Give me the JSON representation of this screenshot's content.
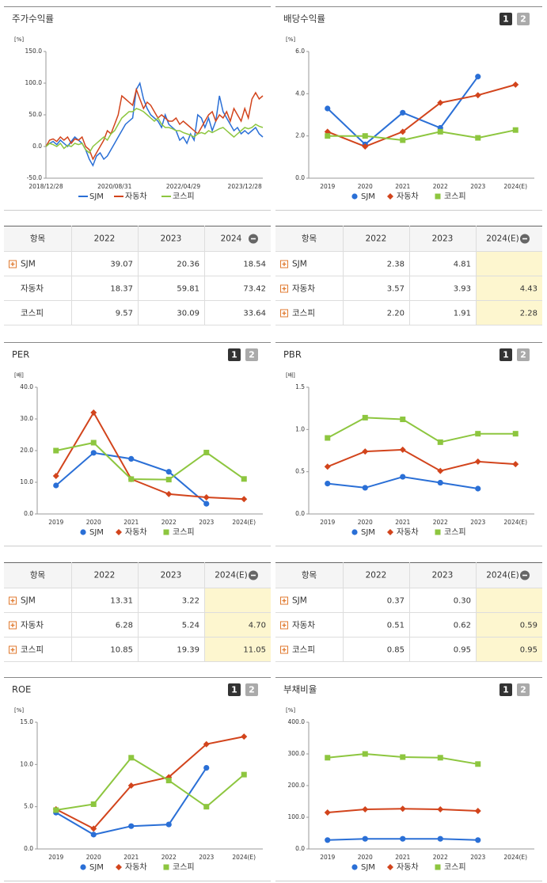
{
  "tab_labels": [
    "1",
    "2"
  ],
  "chart_data": [
    {
      "type": "line",
      "title": "주가수익률",
      "unit": "[%]",
      "tabs": false,
      "markers": false,
      "categories": [
        "2018/12/28",
        null,
        null,
        null,
        null,
        null,
        null,
        null,
        null,
        null,
        null,
        null,
        null,
        null,
        null,
        null,
        null,
        null,
        null,
        "2020/08/31",
        null,
        null,
        null,
        null,
        null,
        null,
        null,
        null,
        null,
        null,
        null,
        null,
        null,
        null,
        null,
        null,
        null,
        null,
        "2022/04/29",
        null,
        null,
        null,
        null,
        null,
        null,
        null,
        null,
        null,
        null,
        null,
        null,
        null,
        null,
        null,
        null,
        "2023/12/28",
        null,
        null,
        null,
        null,
        null
      ],
      "ylim": [
        -50,
        150
      ],
      "yticks": [
        {
          "value": 150,
          "label": "150.0"
        },
        {
          "value": 100,
          "label": "100.0"
        },
        {
          "value": 50,
          "label": "50.0"
        },
        {
          "value": 0,
          "label": "0.0"
        },
        {
          "value": -50,
          "label": "-50.0"
        }
      ],
      "series": [
        {
          "name": "SJM",
          "color": "#2a6fd6",
          "marker": "circle",
          "values": [
            0,
            5,
            8,
            3,
            10,
            5,
            0,
            8,
            15,
            10,
            5,
            -5,
            -20,
            -30,
            -15,
            -10,
            -20,
            -15,
            -5,
            5,
            15,
            25,
            35,
            40,
            45,
            90,
            100,
            75,
            60,
            50,
            45,
            40,
            30,
            50,
            35,
            30,
            25,
            10,
            15,
            5,
            20,
            10,
            50,
            45,
            30,
            45,
            25,
            40,
            80,
            55,
            45,
            35,
            25,
            30,
            20,
            25,
            20,
            25,
            30,
            20,
            15
          ]
        },
        {
          "name": "자동차",
          "color": "#d2441c",
          "marker": "diamond",
          "values": [
            0,
            10,
            12,
            8,
            15,
            10,
            15,
            5,
            12,
            10,
            15,
            0,
            -5,
            -20,
            -10,
            0,
            10,
            25,
            20,
            35,
            50,
            80,
            75,
            70,
            65,
            90,
            75,
            60,
            70,
            65,
            55,
            45,
            50,
            45,
            40,
            40,
            45,
            35,
            40,
            35,
            30,
            25,
            20,
            30,
            40,
            50,
            55,
            40,
            50,
            45,
            55,
            40,
            60,
            50,
            40,
            60,
            45,
            75,
            85,
            75,
            80
          ]
        },
        {
          "name": "코스피",
          "color": "#8dc63f",
          "marker": "square",
          "values": [
            0,
            5,
            3,
            0,
            5,
            -3,
            2,
            0,
            5,
            3,
            5,
            -5,
            -10,
            0,
            5,
            10,
            15,
            10,
            20,
            25,
            35,
            45,
            50,
            55,
            55,
            60,
            58,
            55,
            50,
            45,
            40,
            45,
            35,
            30,
            30,
            28,
            25,
            25,
            22,
            20,
            18,
            15,
            20,
            22,
            20,
            25,
            22,
            25,
            28,
            30,
            25,
            20,
            15,
            20,
            25,
            30,
            28,
            30,
            35,
            32,
            30
          ]
        }
      ]
    },
    {
      "type": "line",
      "title": "배당수익률",
      "unit": "[%]",
      "tabs": true,
      "markers": true,
      "categories": [
        "2019",
        "2020",
        "2021",
        "2022",
        "2023",
        "2024(E)"
      ],
      "ylim": [
        0,
        6
      ],
      "yticks": [
        {
          "value": 0,
          "label": "0.0"
        },
        {
          "value": 2,
          "label": "2.0"
        },
        {
          "value": 4,
          "label": "4.0"
        },
        {
          "value": 6,
          "label": "6.0"
        }
      ],
      "series": [
        {
          "name": "SJM",
          "color": "#2a6fd6",
          "marker": "circle",
          "values": [
            3.3,
            1.6,
            3.1,
            2.38,
            4.81,
            null
          ]
        },
        {
          "name": "자동차",
          "color": "#d2441c",
          "marker": "diamond",
          "values": [
            2.2,
            1.5,
            2.2,
            3.57,
            3.93,
            4.43
          ]
        },
        {
          "name": "코스피",
          "color": "#8dc63f",
          "marker": "square",
          "values": [
            2.0,
            2.0,
            1.8,
            2.2,
            1.91,
            2.28
          ]
        }
      ]
    },
    {
      "type": "line",
      "title": "PER",
      "unit": "[배]",
      "tabs": true,
      "markers": true,
      "categories": [
        "2019",
        "2020",
        "2021",
        "2022",
        "2023",
        "2024(E)"
      ],
      "ylim": [
        0,
        40
      ],
      "yticks": [
        {
          "value": 0,
          "label": "0.0"
        },
        {
          "value": 10,
          "label": "10.0"
        },
        {
          "value": 20,
          "label": "20.0"
        },
        {
          "value": 30,
          "label": "30.0"
        },
        {
          "value": 40,
          "label": "40.0"
        }
      ],
      "series": [
        {
          "name": "SJM",
          "color": "#2a6fd6",
          "marker": "circle",
          "values": [
            9,
            19.3,
            17.4,
            13.31,
            3.22,
            null
          ]
        },
        {
          "name": "자동차",
          "color": "#d2441c",
          "marker": "diamond",
          "values": [
            12,
            32,
            11,
            6.28,
            5.24,
            4.7
          ]
        },
        {
          "name": "코스피",
          "color": "#8dc63f",
          "marker": "square",
          "values": [
            20,
            22.5,
            11,
            10.85,
            19.39,
            11.05
          ]
        }
      ]
    },
    {
      "type": "line",
      "title": "PBR",
      "unit": "[배]",
      "tabs": true,
      "markers": true,
      "categories": [
        "2019",
        "2020",
        "2021",
        "2022",
        "2023",
        "2024(E)"
      ],
      "ylim": [
        0,
        1.5
      ],
      "yticks": [
        {
          "value": 0,
          "label": "0.0"
        },
        {
          "value": 0.5,
          "label": "0.5"
        },
        {
          "value": 1,
          "label": "1.0"
        },
        {
          "value": 1.5,
          "label": "1.5"
        }
      ],
      "series": [
        {
          "name": "SJM",
          "color": "#2a6fd6",
          "marker": "circle",
          "values": [
            0.36,
            0.31,
            0.44,
            0.37,
            0.3,
            null
          ]
        },
        {
          "name": "자동차",
          "color": "#d2441c",
          "marker": "diamond",
          "values": [
            0.56,
            0.74,
            0.76,
            0.51,
            0.62,
            0.59
          ]
        },
        {
          "name": "코스피",
          "color": "#8dc63f",
          "marker": "square",
          "values": [
            0.9,
            1.14,
            1.12,
            0.85,
            0.95,
            0.95
          ]
        }
      ]
    },
    {
      "type": "line",
      "title": "ROE",
      "unit": "[%]",
      "tabs": true,
      "markers": true,
      "categories": [
        "2019",
        "2020",
        "2021",
        "2022",
        "2023",
        "2024(E)"
      ],
      "ylim": [
        0,
        15
      ],
      "yticks": [
        {
          "value": 0,
          "label": "0.0"
        },
        {
          "value": 5,
          "label": "5.0"
        },
        {
          "value": 10,
          "label": "10.0"
        },
        {
          "value": 15,
          "label": "15.0"
        }
      ],
      "series": [
        {
          "name": "SJM",
          "color": "#2a6fd6",
          "marker": "circle",
          "values": [
            4.3,
            1.7,
            2.7,
            2.9,
            9.6,
            null
          ]
        },
        {
          "name": "자동차",
          "color": "#d2441c",
          "marker": "diamond",
          "values": [
            4.7,
            2.4,
            7.5,
            8.5,
            12.4,
            13.3
          ]
        },
        {
          "name": "코스피",
          "color": "#8dc63f",
          "marker": "square",
          "values": [
            4.6,
            5.3,
            10.8,
            8.1,
            5.0,
            8.8
          ]
        }
      ]
    },
    {
      "type": "line",
      "title": "부채비율",
      "unit": "[%]",
      "tabs": true,
      "markers": true,
      "categories": [
        "2019",
        "2020",
        "2021",
        "2022",
        "2023",
        "2024(E)"
      ],
      "ylim": [
        0,
        400
      ],
      "yticks": [
        {
          "value": 0,
          "label": "0.0"
        },
        {
          "value": 100,
          "label": "100.0"
        },
        {
          "value": 200,
          "label": "200.0"
        },
        {
          "value": 300,
          "label": "300.0"
        },
        {
          "value": 400,
          "label": "400.0"
        }
      ],
      "series": [
        {
          "name": "SJM",
          "color": "#2a6fd6",
          "marker": "circle",
          "values": [
            28,
            32,
            32,
            32,
            28,
            null
          ]
        },
        {
          "name": "자동차",
          "color": "#d2441c",
          "marker": "diamond",
          "values": [
            115,
            125,
            127,
            125,
            120,
            null
          ]
        },
        {
          "name": "코스피",
          "color": "#8dc63f",
          "marker": "square",
          "values": [
            288,
            300,
            290,
            288,
            268,
            null
          ]
        }
      ]
    }
  ],
  "tables": [
    {
      "header": [
        "항목",
        "2022",
        "2023",
        "2024"
      ],
      "highlight_last": false,
      "rows": [
        {
          "label": "SJM",
          "expandable": true,
          "cells": [
            "39.07",
            "20.36",
            "18.54"
          ]
        },
        {
          "label": "자동차",
          "expandable": false,
          "cells": [
            "18.37",
            "59.81",
            "73.42"
          ]
        },
        {
          "label": "코스피",
          "expandable": false,
          "cells": [
            "9.57",
            "30.09",
            "33.64"
          ]
        }
      ]
    },
    {
      "header": [
        "항목",
        "2022",
        "2023",
        "2024(E)"
      ],
      "highlight_last": true,
      "rows": [
        {
          "label": "SJM",
          "expandable": true,
          "cells": [
            "2.38",
            "4.81",
            null
          ]
        },
        {
          "label": "자동차",
          "expandable": true,
          "cells": [
            "3.57",
            "3.93",
            "4.43"
          ]
        },
        {
          "label": "코스피",
          "expandable": true,
          "cells": [
            "2.20",
            "1.91",
            "2.28"
          ]
        }
      ]
    },
    {
      "header": [
        "항목",
        "2022",
        "2023",
        "2024(E)"
      ],
      "highlight_last": true,
      "rows": [
        {
          "label": "SJM",
          "expandable": true,
          "cells": [
            "13.31",
            "3.22",
            null
          ]
        },
        {
          "label": "자동차",
          "expandable": true,
          "cells": [
            "6.28",
            "5.24",
            "4.70"
          ]
        },
        {
          "label": "코스피",
          "expandable": true,
          "cells": [
            "10.85",
            "19.39",
            "11.05"
          ]
        }
      ]
    },
    {
      "header": [
        "항목",
        "2022",
        "2023",
        "2024(E)"
      ],
      "highlight_last": true,
      "rows": [
        {
          "label": "SJM",
          "expandable": true,
          "cells": [
            "0.37",
            "0.30",
            null
          ]
        },
        {
          "label": "자동차",
          "expandable": true,
          "cells": [
            "0.51",
            "0.62",
            "0.59"
          ]
        },
        {
          "label": "코스피",
          "expandable": true,
          "cells": [
            "0.85",
            "0.95",
            "0.95"
          ]
        }
      ]
    }
  ]
}
